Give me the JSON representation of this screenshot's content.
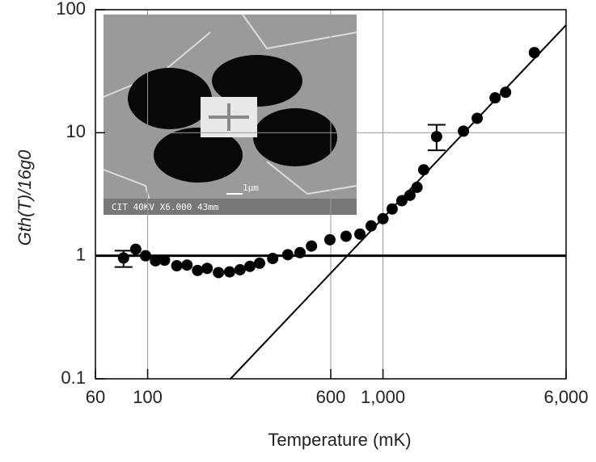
{
  "chart_data": {
    "type": "scatter",
    "xlabel": "Temperature (mK)",
    "ylabel": "Gth(T)/16g0",
    "xscale": "log",
    "yscale": "log",
    "xlim": [
      60,
      6000
    ],
    "ylim": [
      0.1,
      100
    ],
    "xticks": [
      60,
      100,
      600,
      {
        "value": 1000,
        "label": "1,000"
      },
      {
        "value": 6000,
        "label": "6,000"
      }
    ],
    "yticks": [
      0.1,
      1,
      10,
      100
    ],
    "grid": true,
    "color": "#000000",
    "points": {
      "x": [
        79,
        89,
        98,
        108,
        118,
        133,
        147,
        163,
        179,
        200,
        223,
        247,
        272,
        299,
        340,
        394,
        444,
        497,
        595,
        697,
        798,
        891,
        1000,
        1094,
        1203,
        1302,
        1396,
        1490,
        1690,
        2198,
        2515,
        2996,
        3320,
        4400
      ],
      "y": [
        0.96,
        1.13,
        1.0,
        0.91,
        0.92,
        0.83,
        0.84,
        0.76,
        0.79,
        0.73,
        0.74,
        0.77,
        0.82,
        0.87,
        0.95,
        1.02,
        1.06,
        1.2,
        1.35,
        1.44,
        1.5,
        1.75,
        2.0,
        2.4,
        2.8,
        3.1,
        3.6,
        5.0,
        9.3,
        10.3,
        13.1,
        19.2,
        21.3,
        44.8
      ]
    },
    "error_bars": {
      "x": [
        79,
        1690
      ],
      "low": [
        0.81,
        7.2
      ],
      "high": [
        1.1,
        11.6
      ]
    },
    "lines": [
      {
        "x": [
          60,
          6000
        ],
        "y": [
          1,
          1
        ],
        "width": 3
      },
      {
        "x": [
          225,
          6000
        ],
        "y": [
          0.1,
          75
        ],
        "width": 2
      }
    ],
    "annotations": [
      "CIT  40KV  X6.000  43mm",
      "1μm"
    ]
  }
}
